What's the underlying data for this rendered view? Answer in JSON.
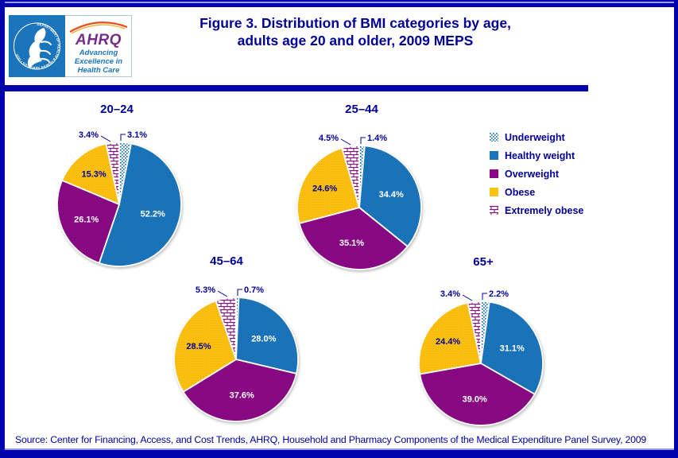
{
  "header": {
    "title_line1": "Figure 3. Distribution of BMI categories by age,",
    "title_line2": "adults age 20 and older, 2009 MEPS",
    "logo": {
      "seal_text": "DEPARTMENT OF HEALTH & HUMAN SERVICES • USA",
      "ahrq_text": "AHRQ",
      "tagline_line1": "Advancing",
      "tagline_line2": "Excellence in",
      "tagline_line3": "Health Care"
    }
  },
  "chart_data": {
    "type": "pie",
    "title": "Figure 3. Distribution of BMI categories by age, adults age 20 and older, 2009 MEPS",
    "categories": [
      "Underweight",
      "Healthy weight",
      "Overweight",
      "Obese",
      "Extremely obese"
    ],
    "series": [
      {
        "name": "20–24",
        "values": [
          3.1,
          52.2,
          26.1,
          15.3,
          3.4
        ]
      },
      {
        "name": "25–44",
        "values": [
          1.4,
          34.4,
          35.1,
          24.6,
          4.5
        ]
      },
      {
        "name": "45–64",
        "values": [
          0.7,
          28.0,
          37.6,
          28.5,
          5.3
        ]
      },
      {
        "name": "65+",
        "values": [
          2.2,
          31.1,
          39.0,
          24.4,
          3.4
        ]
      }
    ],
    "value_label_format": "one_decimal_percent",
    "legend_position": "right",
    "slice_order": "clockwise_from_12"
  },
  "source": "Source: Center for Financing, Access, and Cost Trends, AHRQ, Household and Pharmacy Components of the Medical Expenditure Panel Survey, 2009",
  "colors": {
    "navy": "#000099",
    "navy_bar": "#0202AD",
    "accent_light": "#9b9be8",
    "healthy": "#1B75BC",
    "overweight": "#8A0984",
    "obese": "#FFC20E",
    "pattern_blue": "#1B75BC",
    "pattern_purple": "#8A0984",
    "logo_blue": "#1B75BC",
    "ahrq_purple": "#772E86",
    "arc_red": "#E84E1B",
    "arc_gold": "#F9A51A"
  }
}
